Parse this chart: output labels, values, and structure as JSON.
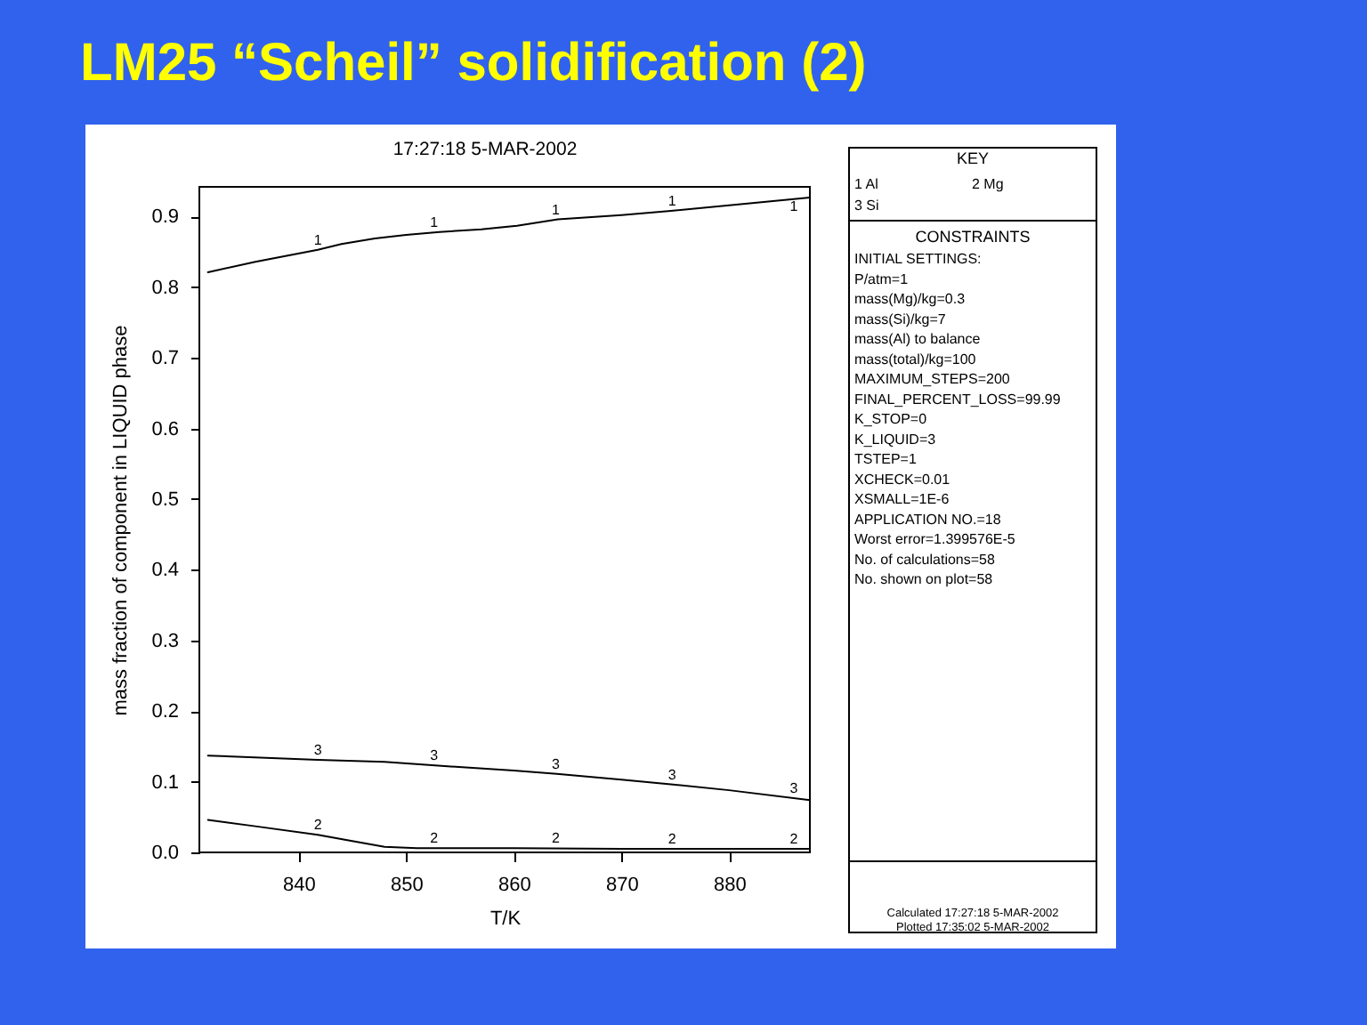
{
  "chart_data": {
    "type": "line",
    "title": "LM25 “Scheil” solidification (2)",
    "subtitle": "17:27:18 5-MAR-2002",
    "xlabel": "T/K",
    "ylabel": "mass fraction of component in LIQUID phase",
    "xlim": [
      830.8,
      887.5
    ],
    "xticks": [
      840,
      850,
      860,
      870,
      880
    ],
    "ylim": [
      0,
      0.942
    ],
    "yticks": [
      {
        "value": 0,
        "label": "0.0"
      },
      0.1,
      0.2,
      0.3,
      0.4,
      0.5,
      0.6,
      0.7,
      0.8,
      0.9
    ],
    "line_style": "solid",
    "series": [
      {
        "color": "#000000",
        "x": [
          831.6,
          836,
          841.8,
          844,
          847.1,
          850,
          853.1,
          857,
          860.3,
          864.1,
          870,
          874.6,
          880,
          887.5
        ],
        "values": [
          0.821,
          0.836,
          0.853,
          0.861,
          0.869,
          0.874,
          0.878,
          0.882,
          0.887,
          0.896,
          0.902,
          0.908,
          0.916,
          0.927
        ]
      },
      {
        "color": "#000000",
        "x": [
          831.6,
          836,
          841.8,
          845,
          848,
          851,
          860,
          870,
          880,
          887.5
        ],
        "values": [
          0.046,
          0.037,
          0.025,
          0.016,
          0.008,
          0.006,
          0.006,
          0.005,
          0.005,
          0.005
        ]
      },
      {
        "color": "#000000",
        "x": [
          831.6,
          841.8,
          848,
          852.7,
          860,
          864,
          870,
          874.8,
          880,
          887.5
        ],
        "values": [
          0.137,
          0.131,
          0.128,
          0.123,
          0.116,
          0.111,
          0.103,
          0.096,
          0.088,
          0.074
        ]
      }
    ],
    "annotations": [
      {
        "text": "1",
        "x": 841.8,
        "y": 0.853
      },
      {
        "text": "1",
        "x": 852.6,
        "y": 0.878
      },
      {
        "text": "1",
        "x": 863.9,
        "y": 0.895
      },
      {
        "text": "1",
        "x": 874.7,
        "y": 0.908
      },
      {
        "text": "1",
        "x": 886.0,
        "y": 0.925
      },
      {
        "text": "2",
        "x": 841.8,
        "y": 0.025
      },
      {
        "text": "2",
        "x": 852.6,
        "y": 0.006
      },
      {
        "text": "2",
        "x": 863.9,
        "y": 0.006
      },
      {
        "text": "2",
        "x": 874.7,
        "y": 0.005
      },
      {
        "text": "2",
        "x": 886.0,
        "y": 0.005
      },
      {
        "text": "3",
        "x": 841.8,
        "y": 0.131
      },
      {
        "text": "3",
        "x": 852.6,
        "y": 0.123
      },
      {
        "text": "3",
        "x": 863.9,
        "y": 0.111
      },
      {
        "text": "3",
        "x": 874.7,
        "y": 0.096
      },
      {
        "text": "3",
        "x": 886.0,
        "y": 0.077
      },
      "KEY",
      "1 Al",
      "2 Mg",
      "3 Si",
      "CONSTRAINTS",
      "INITIAL SETTINGS:",
      "P/atm=1",
      "mass(Mg)/kg=0.3",
      "mass(Si)/kg=7",
      "mass(Al) to balance",
      "mass(total)/kg=100",
      "MAXIMUM_STEPS=200",
      "FINAL_PERCENT_LOSS=99.99",
      "K_STOP=0",
      "K_LIQUID=3",
      "TSTEP=1",
      "XCHECK=0.01",
      "XSMALL=1E-6",
      "APPLICATION NO.=18",
      "Worst error=1.399576E-5",
      "No. of calculations=58",
      "No. shown on plot=58",
      "Calculated 17:27:18 5-MAR-2002",
      "Plotted 17:35:02 5-MAR-2002"
    ]
  }
}
